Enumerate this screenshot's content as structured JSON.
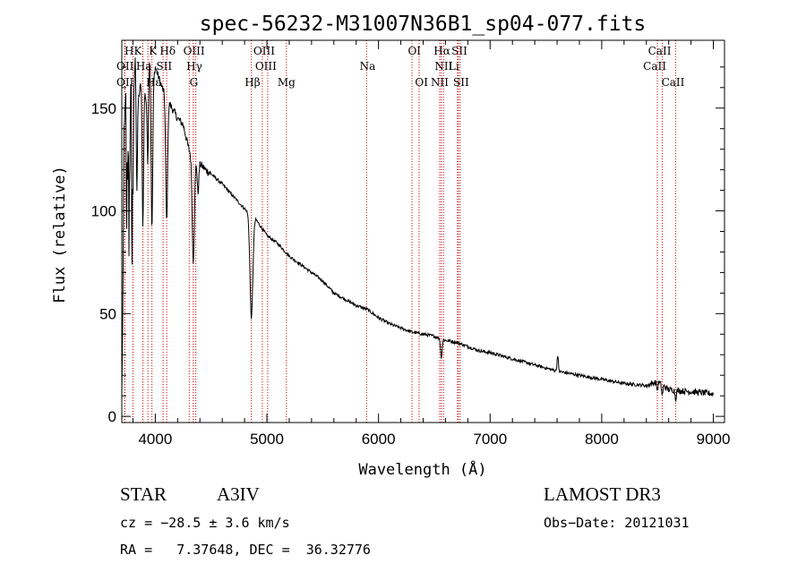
{
  "chart_data": {
    "type": "line",
    "title": "spec-56232-M31007N36B1_sp04-077.fits",
    "xlabel": "Wavelength (Å)",
    "ylabel": "Flux (relative)",
    "xlim": [
      3700,
      9100
    ],
    "ylim": [
      -3,
      183
    ],
    "xticks": [
      4000,
      5000,
      6000,
      7000,
      8000,
      9000
    ],
    "yticks": [
      0,
      50,
      100,
      150
    ],
    "line_color": "#000000",
    "marker_color": "#cc0000",
    "spectrum_anchors": [
      [
        3700,
        10
      ],
      [
        3710,
        55
      ],
      [
        3720,
        140
      ],
      [
        3740,
        160
      ],
      [
        3760,
        130
      ],
      [
        3780,
        165
      ],
      [
        3800,
        150
      ],
      [
        3820,
        175
      ],
      [
        3850,
        155
      ],
      [
        3880,
        165
      ],
      [
        3900,
        160
      ],
      [
        3930,
        150
      ],
      [
        3950,
        175
      ],
      [
        3970,
        160
      ],
      [
        4000,
        170
      ],
      [
        4030,
        165
      ],
      [
        4060,
        160
      ],
      [
        4100,
        155
      ],
      [
        4150,
        150
      ],
      [
        4200,
        145
      ],
      [
        4250,
        142
      ],
      [
        4300,
        130
      ],
      [
        4350,
        125
      ],
      [
        4400,
        123
      ],
      [
        4450,
        120
      ],
      [
        4500,
        118
      ],
      [
        4600,
        113
      ],
      [
        4700,
        107
      ],
      [
        4800,
        101
      ],
      [
        4900,
        96
      ],
      [
        5000,
        88
      ],
      [
        5100,
        84
      ],
      [
        5200,
        78
      ],
      [
        5300,
        74
      ],
      [
        5400,
        70
      ],
      [
        5500,
        66
      ],
      [
        5600,
        60
      ],
      [
        5700,
        57
      ],
      [
        5800,
        54
      ],
      [
        5900,
        52
      ],
      [
        6000,
        48
      ],
      [
        6100,
        45
      ],
      [
        6200,
        43
      ],
      [
        6300,
        41
      ],
      [
        6400,
        40
      ],
      [
        6500,
        39
      ],
      [
        6600,
        37
      ],
      [
        6700,
        36
      ],
      [
        6800,
        34
      ],
      [
        6900,
        32
      ],
      [
        7000,
        31
      ],
      [
        7200,
        28
      ],
      [
        7400,
        25
      ],
      [
        7600,
        22
      ],
      [
        7800,
        20
      ],
      [
        8000,
        18
      ],
      [
        8200,
        16
      ],
      [
        8400,
        15
      ],
      [
        8500,
        17
      ],
      [
        8600,
        13
      ],
      [
        8800,
        12
      ],
      [
        9000,
        11
      ]
    ],
    "absorption_lines": [
      [
        3750,
        30,
        5
      ],
      [
        3770,
        35,
        6
      ],
      [
        3798,
        45,
        7
      ],
      [
        3835,
        55,
        8
      ],
      [
        3889,
        70,
        9
      ],
      [
        3933,
        30,
        7
      ],
      [
        3970,
        70,
        10
      ],
      [
        4102,
        60,
        12
      ],
      [
        4340,
        50,
        14
      ],
      [
        4383,
        15,
        10
      ],
      [
        4861,
        50,
        18
      ],
      [
        6563,
        9,
        10
      ],
      [
        8498,
        4,
        8
      ],
      [
        8542,
        5,
        8
      ],
      [
        8662,
        4,
        8
      ]
    ],
    "emission_bumps": [
      [
        7605,
        8,
        8
      ]
    ],
    "spike_lines": [
      [
        3742,
        -55
      ],
      [
        3765,
        -45
      ],
      [
        3790,
        -60
      ]
    ],
    "markers": [
      {
        "label": "HK",
        "x": 3800,
        "row": 1,
        "side": "left"
      },
      {
        "label": "K",
        "x": 3934,
        "row": 1,
        "side": "left"
      },
      {
        "label": "Hδ",
        "x": 4102,
        "row": 1,
        "side": "left"
      },
      {
        "label": "OIII",
        "x": 4363,
        "row": 1,
        "side": "left"
      },
      {
        "label": "OIII",
        "x": 4959,
        "row": 1,
        "side": "right"
      },
      {
        "label": "OI",
        "x": 6300,
        "row": 1,
        "side": "left"
      },
      {
        "label": "Hα",
        "x": 6563,
        "row": 1,
        "side": "left"
      },
      {
        "label": "SII",
        "x": 6716,
        "row": 1,
        "side": "left"
      },
      {
        "label": "CaII",
        "x": 8542,
        "row": 1,
        "side": "left"
      },
      {
        "label": "OII",
        "x": 3727,
        "row": 2,
        "side": "left"
      },
      {
        "label": "Ha",
        "x": 3889,
        "row": 2,
        "side": "left"
      },
      {
        "label": "SII",
        "x": 4070,
        "row": 2,
        "side": "left"
      },
      {
        "label": "Hγ",
        "x": 4340,
        "row": 2,
        "side": "left"
      },
      {
        "label": "OIII",
        "x": 5007,
        "row": 2,
        "side": "left"
      },
      {
        "label": "Na",
        "x": 5893,
        "row": 2,
        "side": "left"
      },
      {
        "label": "NII",
        "x": 6583,
        "row": 2,
        "side": "left"
      },
      {
        "label": "Li",
        "x": 6708,
        "row": 2,
        "side": "right"
      },
      {
        "label": "CaII",
        "x": 8498,
        "row": 2,
        "side": "left"
      },
      {
        "label": "OII",
        "x": 3727,
        "row": 3,
        "side": "left"
      },
      {
        "label": "Hε",
        "x": 3970,
        "row": 3,
        "side": "left"
      },
      {
        "label": "G",
        "x": 4304,
        "row": 3,
        "side": "left"
      },
      {
        "label": "Hβ",
        "x": 4861,
        "row": 3,
        "side": "left"
      },
      {
        "label": "Mg",
        "x": 5175,
        "row": 3,
        "side": "left"
      },
      {
        "label": "OI",
        "x": 6364,
        "row": 3,
        "side": "left"
      },
      {
        "label": "NII",
        "x": 6548,
        "row": 3,
        "side": "left"
      },
      {
        "label": "SII",
        "x": 6731,
        "row": 3,
        "side": "left"
      },
      {
        "label": "CaII",
        "x": 8662,
        "row": 3,
        "side": "left"
      }
    ]
  },
  "info": {
    "object_class": "STAR",
    "subclass": "A3IV",
    "survey": "LAMOST DR3",
    "redshift": "cz = −28.5 ± 3.6 km/s",
    "obs_date": "Obs−Date: 20121031",
    "coords": "RA =   7.37648, DEC =  36.32776"
  }
}
